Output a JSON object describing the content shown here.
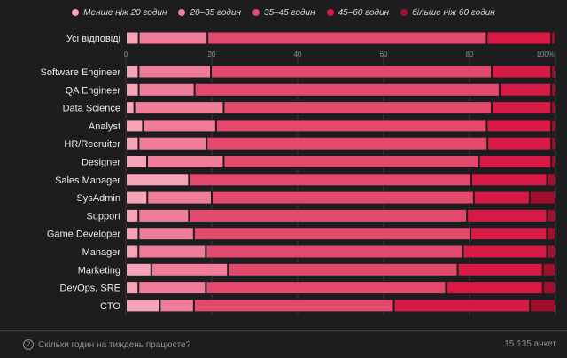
{
  "legend": {
    "items": [
      {
        "label": "Менше ніж 20 годин",
        "color": "#f5a3b8"
      },
      {
        "label": "20–35 годин",
        "color": "#ef7d99"
      },
      {
        "label": "35–45 годин",
        "color": "#e3486d"
      },
      {
        "label": "45–60 годин",
        "color": "#d71a45"
      },
      {
        "label": "більше ніж 60 годин",
        "color": "#a0102e"
      }
    ]
  },
  "footer": {
    "question": "Скільки годин на тиждень працюєте?",
    "question_icon": "question-circle-icon",
    "count": "15 135 анкет"
  },
  "chart_data": {
    "type": "bar",
    "orientation": "horizontal",
    "stacked": true,
    "xlim": [
      0,
      100
    ],
    "xticks": [
      "0",
      "20",
      "40",
      "60",
      "80",
      "100%"
    ],
    "grid": true,
    "legend_position": "top",
    "series_names": [
      "Менше ніж 20 годин",
      "20–35 годин",
      "35–45 годин",
      "45–60 годин",
      "більше ніж 60 годин"
    ],
    "summary": {
      "category": "Усі відповіді",
      "values": [
        3,
        16,
        65,
        15,
        1
      ]
    },
    "categories": [
      "Software Engineer",
      "QA Engineer",
      "Data Science",
      "Analyst",
      "HR/Recruiter",
      "Designer",
      "Sales Manager",
      "SysAdmin",
      "Support",
      "Game Developer",
      "Manager",
      "Marketing",
      "DevOps, SRE",
      "CTO"
    ],
    "values": [
      [
        3,
        17,
        66,
        14,
        1
      ],
      [
        3,
        13,
        71,
        12,
        1
      ],
      [
        2,
        21,
        63,
        14,
        1
      ],
      [
        4,
        17,
        63,
        15,
        1
      ],
      [
        3,
        16,
        66,
        15,
        1
      ],
      [
        5,
        18,
        60,
        17,
        1
      ],
      [
        15,
        0,
        67,
        18,
        2
      ],
      [
        5,
        15,
        61,
        13,
        6
      ],
      [
        3,
        12,
        66,
        19,
        2
      ],
      [
        3,
        13,
        65,
        18,
        2
      ],
      [
        3,
        16,
        61,
        20,
        2
      ],
      [
        6,
        18,
        54,
        20,
        3
      ],
      [
        3,
        16,
        57,
        23,
        3
      ],
      [
        8,
        8,
        47,
        32,
        6
      ]
    ]
  }
}
